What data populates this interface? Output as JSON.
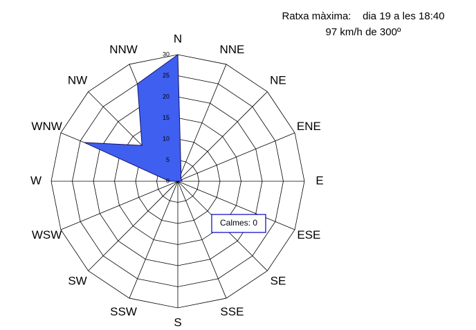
{
  "chart_data": {
    "type": "radar",
    "annotations": [
      "Ratxa màxima:    dia 19 a les 18:40",
      "97 km/h de 300º",
      "Calmes: 0"
    ],
    "categories": [
      "N",
      "NNE",
      "NE",
      "ENE",
      "E",
      "ESE",
      "SE",
      "SSE",
      "S",
      "SSW",
      "SW",
      "WSW",
      "W",
      "WNW",
      "NW",
      "NNW"
    ],
    "values": [
      30,
      2,
      1,
      1,
      1,
      0,
      0,
      0,
      0,
      0,
      0,
      0,
      2,
      24,
      12,
      25
    ],
    "color": "#3f5ff0",
    "rlim": [
      0,
      30
    ],
    "rticks": [
      0,
      5,
      10,
      15,
      20,
      25,
      30
    ],
    "grid": true
  }
}
